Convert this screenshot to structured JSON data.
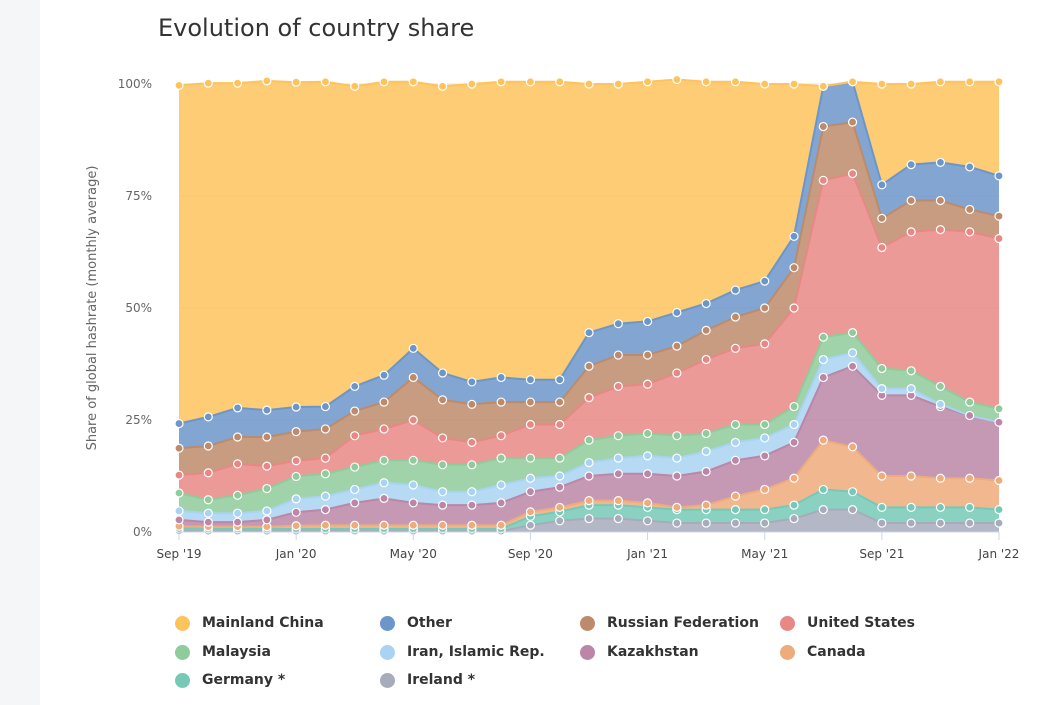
{
  "title": "Evolution of country share",
  "chart_data": {
    "type": "area",
    "stacked": true,
    "ylabel": "Share of global hashrate (monthly average)",
    "ylim": [
      0,
      100
    ],
    "y_ticks": [
      0,
      25,
      50,
      75,
      100
    ],
    "y_tick_labels": [
      "0%",
      "25%",
      "50%",
      "75%",
      "100%"
    ],
    "x": [
      "2019-09",
      "2019-10",
      "2019-11",
      "2019-12",
      "2020-01",
      "2020-02",
      "2020-03",
      "2020-04",
      "2020-05",
      "2020-06",
      "2020-07",
      "2020-08",
      "2020-09",
      "2020-10",
      "2020-11",
      "2020-12",
      "2021-01",
      "2021-02",
      "2021-03",
      "2021-04",
      "2021-05",
      "2021-06",
      "2021-07",
      "2021-08",
      "2021-09",
      "2021-10",
      "2021-11",
      "2021-12",
      "2022-01"
    ],
    "x_ticks": [
      "2019-09",
      "2020-01",
      "2020-05",
      "2020-09",
      "2021-01",
      "2021-05",
      "2021-09",
      "2022-01"
    ],
    "x_tick_labels": [
      "Sep '19",
      "Jan '20",
      "May '20",
      "Sep '20",
      "Jan '21",
      "May '21",
      "Sep '21",
      "Jan '22"
    ],
    "legend_position": "bottom",
    "series": [
      {
        "name": "Ireland *",
        "color": "#a7abbc",
        "values": [
          0.3,
          0.2,
          0.2,
          0.2,
          0.2,
          0.2,
          0.2,
          0.2,
          0.2,
          0.2,
          0.2,
          0.2,
          1.5,
          2.5,
          3.0,
          3.0,
          2.5,
          2.0,
          2.0,
          2.0,
          2.0,
          3.0,
          5.0,
          5.0,
          2.0,
          2.0,
          2.0,
          2.0,
          2.0
        ]
      },
      {
        "name": "Germany *",
        "color": "#75c9b6",
        "values": [
          0.5,
          0.5,
          0.5,
          0.5,
          0.5,
          0.5,
          0.5,
          0.5,
          0.5,
          0.5,
          0.5,
          0.5,
          2.0,
          2.0,
          3.0,
          3.0,
          3.0,
          3.0,
          3.0,
          3.0,
          3.0,
          3.0,
          4.5,
          4.0,
          3.5,
          3.5,
          3.5,
          3.5,
          3.0
        ]
      },
      {
        "name": "Canada",
        "color": "#eeab7c",
        "values": [
          0.5,
          0.5,
          0.5,
          0.5,
          0.7,
          0.8,
          0.8,
          0.8,
          0.8,
          0.8,
          0.8,
          0.8,
          1.0,
          1.0,
          1.0,
          1.0,
          1.0,
          0.5,
          1.0,
          3.0,
          4.5,
          6.0,
          11.0,
          10.0,
          7.0,
          7.0,
          6.5,
          6.5,
          6.5
        ]
      },
      {
        "name": "Kazakhstan",
        "color": "#bb86a7",
        "values": [
          1.4,
          1.0,
          1.0,
          1.5,
          3.0,
          3.5,
          5.0,
          6.0,
          5.0,
          4.5,
          4.5,
          5.0,
          4.5,
          4.5,
          5.5,
          6.0,
          6.5,
          7.0,
          7.5,
          8.0,
          7.5,
          8.0,
          14.0,
          18.0,
          18.0,
          18.0,
          16.0,
          14.0,
          13.0
        ]
      },
      {
        "name": "Iran, Islamic Rep.",
        "color": "#a9d3f2",
        "values": [
          2.0,
          2.0,
          2.0,
          2.0,
          3.0,
          3.0,
          3.0,
          3.5,
          4.0,
          3.0,
          3.0,
          4.0,
          3.0,
          2.5,
          3.0,
          3.5,
          4.0,
          4.0,
          4.5,
          4.0,
          4.0,
          4.0,
          4.0,
          3.0,
          1.5,
          1.5,
          0.5,
          0.0,
          0.0
        ]
      },
      {
        "name": "Malaysia",
        "color": "#8fcb9b",
        "values": [
          4.0,
          3.0,
          4.0,
          5.0,
          5.0,
          5.0,
          5.0,
          5.0,
          5.5,
          6.0,
          6.0,
          6.0,
          4.5,
          4.0,
          5.0,
          5.0,
          5.0,
          5.0,
          4.0,
          4.0,
          3.0,
          4.0,
          5.0,
          4.5,
          4.5,
          4.0,
          4.0,
          3.0,
          3.0
        ]
      },
      {
        "name": "United States",
        "color": "#e88885",
        "values": [
          4.0,
          6.0,
          7.0,
          5.0,
          3.5,
          3.5,
          7.0,
          7.0,
          9.0,
          6.0,
          5.0,
          5.0,
          7.5,
          7.5,
          9.5,
          11.0,
          11.0,
          14.0,
          16.5,
          17.0,
          18.0,
          22.0,
          35.0,
          35.5,
          27.0,
          31.0,
          35.0,
          38.0,
          38.0
        ]
      },
      {
        "name": "Russian Federation",
        "color": "#bd8b6b",
        "values": [
          6.0,
          6.0,
          6.0,
          6.5,
          6.5,
          6.5,
          5.5,
          6.0,
          9.5,
          8.5,
          8.5,
          7.5,
          5.0,
          5.0,
          7.0,
          7.0,
          6.5,
          6.0,
          6.5,
          7.0,
          8.0,
          9.0,
          12.0,
          11.5,
          6.5,
          7.0,
          6.5,
          5.0,
          5.0
        ]
      },
      {
        "name": "Other",
        "color": "#6c96c9",
        "values": [
          5.5,
          6.5,
          6.5,
          6.0,
          5.5,
          5.0,
          5.5,
          6.0,
          6.5,
          6.0,
          5.0,
          5.5,
          5.0,
          5.0,
          7.5,
          7.0,
          7.5,
          7.5,
          6.0,
          6.0,
          6.0,
          7.0,
          9.0,
          9.0,
          7.5,
          8.0,
          8.5,
          9.5,
          9.0
        ]
      },
      {
        "name": "Mainland China",
        "color": "#fdc35c",
        "values": [
          75.5,
          74.5,
          72.5,
          73.5,
          72.5,
          72.5,
          67.0,
          65.5,
          59.5,
          64.0,
          66.5,
          66.0,
          66.5,
          66.5,
          55.5,
          53.5,
          53.5,
          52.0,
          49.5,
          46.5,
          44.0,
          34.0,
          0.0,
          0.0,
          22.5,
          18.0,
          18.0,
          19.0,
          21.0
        ]
      }
    ]
  },
  "legend": [
    {
      "label": "Mainland China",
      "color": "#fdc35c"
    },
    {
      "label": "Other",
      "color": "#6c96c9"
    },
    {
      "label": "Russian Federation",
      "color": "#bd8b6b"
    },
    {
      "label": "United States",
      "color": "#e88885"
    },
    {
      "label": "Malaysia",
      "color": "#8fcb9b"
    },
    {
      "label": "Iran, Islamic Rep.",
      "color": "#a9d3f2"
    },
    {
      "label": "Kazakhstan",
      "color": "#bb86a7"
    },
    {
      "label": "Canada",
      "color": "#eeab7c"
    },
    {
      "label": "Germany *",
      "color": "#75c9b6"
    },
    {
      "label": "Ireland *",
      "color": "#a7abbc"
    }
  ]
}
